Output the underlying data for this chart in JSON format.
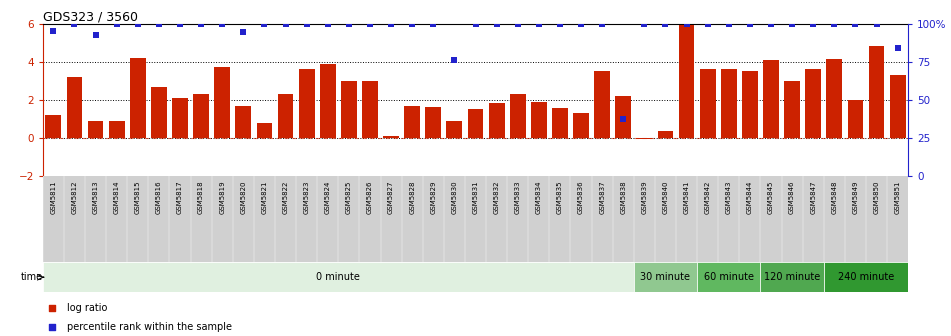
{
  "title": "GDS323 / 3560",
  "samples": [
    "GSM5811",
    "GSM5812",
    "GSM5813",
    "GSM5814",
    "GSM5815",
    "GSM5816",
    "GSM5817",
    "GSM5818",
    "GSM5819",
    "GSM5820",
    "GSM5821",
    "GSM5822",
    "GSM5823",
    "GSM5824",
    "GSM5825",
    "GSM5826",
    "GSM5827",
    "GSM5828",
    "GSM5829",
    "GSM5830",
    "GSM5831",
    "GSM5832",
    "GSM5833",
    "GSM5834",
    "GSM5835",
    "GSM5836",
    "GSM5837",
    "GSM5838",
    "GSM5839",
    "GSM5840",
    "GSM5841",
    "GSM5842",
    "GSM5843",
    "GSM5844",
    "GSM5845",
    "GSM5846",
    "GSM5847",
    "GSM5848",
    "GSM5849",
    "GSM5850",
    "GSM5851"
  ],
  "log_ratio": [
    1.2,
    3.2,
    0.9,
    0.9,
    4.2,
    2.7,
    2.1,
    2.3,
    3.7,
    1.7,
    0.8,
    2.3,
    3.6,
    3.9,
    3.0,
    3.0,
    0.1,
    1.7,
    1.65,
    0.9,
    1.55,
    1.85,
    2.3,
    1.9,
    1.6,
    1.3,
    3.5,
    2.2,
    -0.05,
    0.35,
    5.9,
    3.6,
    3.6,
    3.5,
    4.1,
    3.0,
    3.6,
    4.15,
    2.0,
    4.8,
    3.3
  ],
  "percentile_raw": [
    5.6,
    6.0,
    5.4,
    6.0,
    6.0,
    6.0,
    6.0,
    6.0,
    6.0,
    5.55,
    6.0,
    6.0,
    6.0,
    6.0,
    6.0,
    6.0,
    6.0,
    6.0,
    6.0,
    4.1,
    6.0,
    6.0,
    6.0,
    6.0,
    6.0,
    6.0,
    6.0,
    1.0,
    6.0,
    6.0,
    6.0,
    6.0,
    6.0,
    6.0,
    6.0,
    6.0,
    6.0,
    6.0,
    6.0,
    6.0,
    4.7
  ],
  "bar_color": "#cc2200",
  "dot_color": "#2222cc",
  "ylim_left": [
    -2,
    6
  ],
  "ylim_right": [
    0,
    100
  ],
  "yticks_left": [
    -2,
    0,
    2,
    4,
    6
  ],
  "yticks_right": [
    0,
    25,
    50,
    75,
    100
  ],
  "time_groups": [
    {
      "label": "0 minute",
      "start": 0,
      "end": 28,
      "color": "#e0f0e0"
    },
    {
      "label": "30 minute",
      "start": 28,
      "end": 31,
      "color": "#90c890"
    },
    {
      "label": "60 minute",
      "start": 31,
      "end": 34,
      "color": "#60b860"
    },
    {
      "label": "120 minute",
      "start": 34,
      "end": 37,
      "color": "#50a850"
    },
    {
      "label": "240 minute",
      "start": 37,
      "end": 41,
      "color": "#309830"
    }
  ],
  "legend_log_ratio": "log ratio",
  "legend_percentile": "percentile rank within the sample",
  "time_label": "time",
  "label_bg": "#d0d0d0",
  "background_color": "#ffffff"
}
